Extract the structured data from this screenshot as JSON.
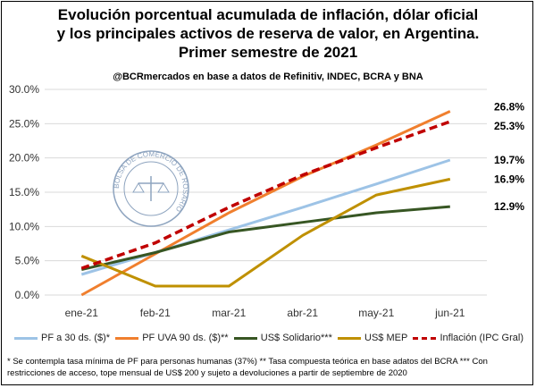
{
  "title_lines": [
    "Evolución porcentual acumulada de inflación, dólar oficial",
    "y los principales activos de reserva de valor, en Argentina.",
    "Primer semestre de 2021"
  ],
  "source": "@BCRmercados en base a datos de Refinitiv, INDEC, BCRA y BNA",
  "footnote": "* Se contempla tasa mínima de PF para personas humanas (37%) ** Tasa compuesta teórica en base adatos del BCRA *** Con restricciones de acceso, tope mensual de US$ 200 y sujeto a devoluciones a partir de septiembre de 2020",
  "watermark_text": "BOLSA DE COMERCIO DE ROSARIO",
  "chart_data": {
    "type": "line",
    "categories": [
      "ene-21",
      "feb-21",
      "mar-21",
      "abr-21",
      "may-21",
      "jun-21"
    ],
    "ylim": [
      0,
      30
    ],
    "yticks": [
      "0.0%",
      "5.0%",
      "10.0%",
      "15.0%",
      "20.0%",
      "25.0%",
      "30.0%"
    ],
    "grid": true,
    "legend_position": "bottom",
    "series": [
      {
        "name": "PF a 30 ds. ($)*",
        "color": "#9dc3e6",
        "dashed": false,
        "values": [
          3.0,
          6.2,
          9.5,
          12.8,
          16.2,
          19.7
        ],
        "end_label": ""
      },
      {
        "name": "PF UVA 90 ds. ($)**",
        "color": "#f07f2e",
        "dashed": false,
        "values": [
          0.0,
          6.0,
          12.0,
          17.3,
          21.9,
          26.8
        ],
        "end_label": "26.8%"
      },
      {
        "name": "US$ Solidario***",
        "color": "#375623",
        "dashed": false,
        "values": [
          3.7,
          6.2,
          9.2,
          10.6,
          12.0,
          12.9
        ],
        "end_label": "12.9%"
      },
      {
        "name": "US$ MEP",
        "color": "#bf9000",
        "dashed": false,
        "values": [
          5.7,
          1.3,
          1.3,
          8.7,
          14.6,
          16.9
        ],
        "end_label": "16.9%"
      },
      {
        "name": "Inflación (IPC Gral)",
        "color": "#c00000",
        "dashed": true,
        "values": [
          3.9,
          7.6,
          12.8,
          17.5,
          21.5,
          25.3
        ],
        "end_label": "25.3%"
      }
    ],
    "extra_end_labels": [
      {
        "text": "19.7%",
        "value": 19.7
      }
    ]
  }
}
